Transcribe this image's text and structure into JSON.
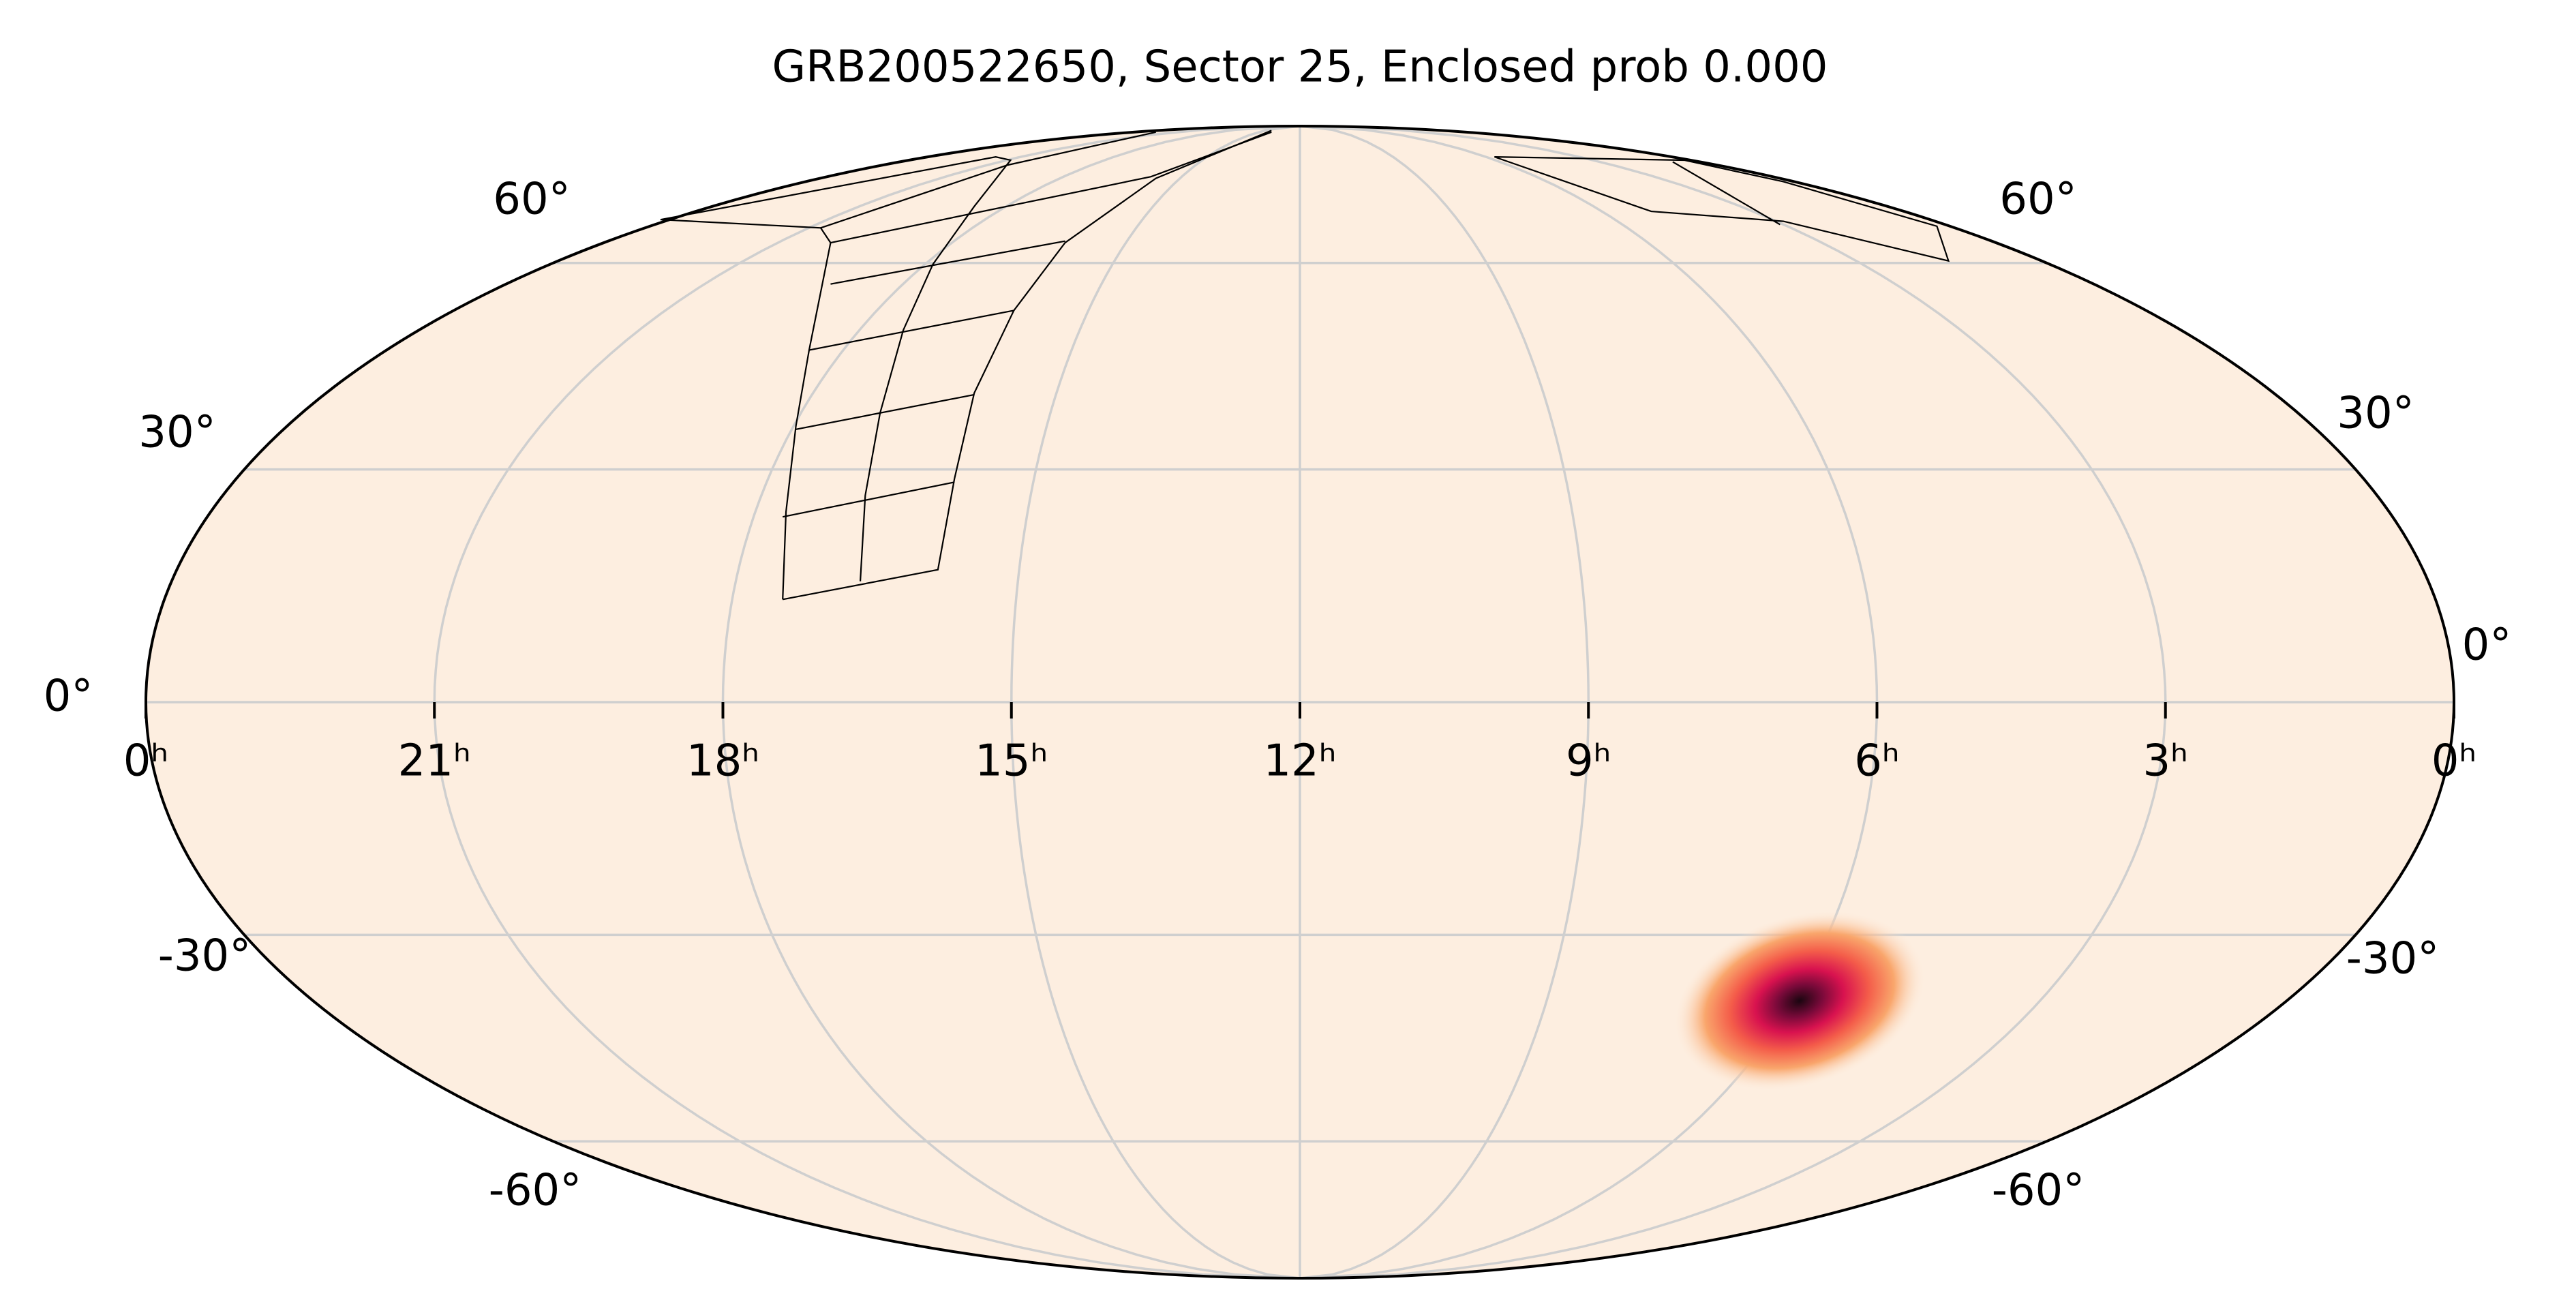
{
  "title": "GRB200522650, Sector 25, Enclosed prob 0.000",
  "ra_ticks": [
    {
      "value": 0,
      "label": "0ʰ"
    },
    {
      "value": 21,
      "label": "21ʰ"
    },
    {
      "value": 18,
      "label": "18ʰ"
    },
    {
      "value": 15,
      "label": "15ʰ"
    },
    {
      "value": 12,
      "label": "12ʰ"
    },
    {
      "value": 9,
      "label": "9ʰ"
    },
    {
      "value": 6,
      "label": "6ʰ"
    },
    {
      "value": 3,
      "label": "3ʰ"
    },
    {
      "value": 0,
      "label": "0ʰ"
    }
  ],
  "dec_ticks_left": [
    {
      "value": 60,
      "label": "60°"
    },
    {
      "value": 30,
      "label": "30°"
    },
    {
      "value": 0,
      "label": "0°"
    },
    {
      "value": -30,
      "label": "-30°"
    },
    {
      "value": -60,
      "label": "-60°"
    }
  ],
  "dec_ticks_right": [
    {
      "value": 60,
      "label": "60°"
    },
    {
      "value": 30,
      "label": "30°"
    },
    {
      "value": 0,
      "label": "0°"
    },
    {
      "value": -30,
      "label": "-30°"
    },
    {
      "value": -60,
      "label": "-60°"
    }
  ]
}
